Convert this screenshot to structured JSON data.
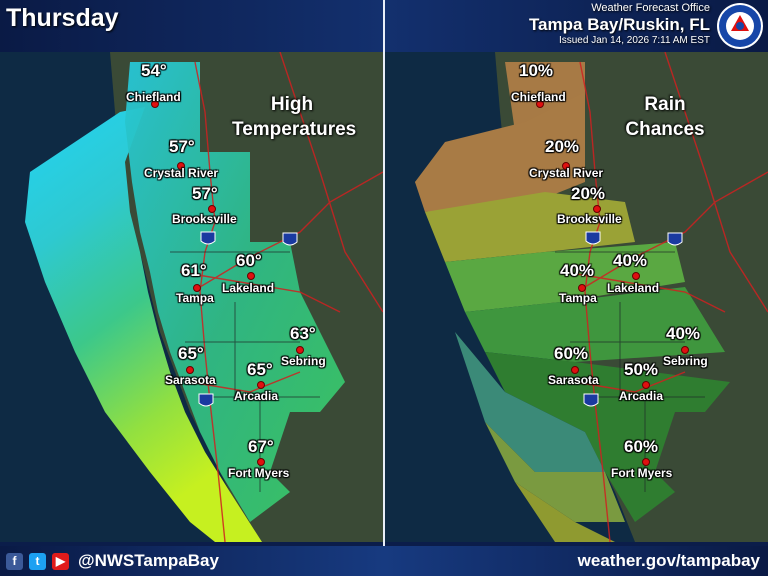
{
  "header": {
    "day": "Thursday",
    "office_line1": "Weather Forecast Office",
    "office_line2": "Tampa Bay/Ruskin, FL",
    "issued": "Issued Jan 14, 2026 7:11 AM EST",
    "logo_text": "NATIONAL WEATHER SERVICE"
  },
  "left_panel": {
    "title_line1": "High",
    "title_line2": "Temperatures",
    "cities": [
      {
        "name": "Chiefland",
        "value": "54°"
      },
      {
        "name": "Crystal River",
        "value": "57°"
      },
      {
        "name": "Brooksville",
        "value": "57°"
      },
      {
        "name": "Tampa",
        "value": "61°"
      },
      {
        "name": "Lakeland",
        "value": "60°"
      },
      {
        "name": "Sebring",
        "value": "63°"
      },
      {
        "name": "Sarasota",
        "value": "65°"
      },
      {
        "name": "Arcadia",
        "value": "65°"
      },
      {
        "name": "Fort Myers",
        "value": "67°"
      }
    ]
  },
  "right_panel": {
    "title_line1": "Rain",
    "title_line2": "Chances",
    "cities": [
      {
        "name": "Chiefland",
        "value": "10%"
      },
      {
        "name": "Crystal River",
        "value": "20%"
      },
      {
        "name": "Brooksville",
        "value": "20%"
      },
      {
        "name": "Tampa",
        "value": "40%"
      },
      {
        "name": "Lakeland",
        "value": "40%"
      },
      {
        "name": "Sebring",
        "value": "40%"
      },
      {
        "name": "Sarasota",
        "value": "60%"
      },
      {
        "name": "Arcadia",
        "value": "50%"
      },
      {
        "name": "Fort Myers",
        "value": "60%"
      }
    ]
  },
  "interstates": [
    "75",
    "4",
    "75"
  ],
  "footer": {
    "social_icons": [
      "facebook-icon",
      "twitter-icon",
      "youtube-icon"
    ],
    "handle": "@NWSTampaBay",
    "url": "weather.gov/tampabay"
  },
  "colors": {
    "header_bg": "#0b1d4a",
    "temp_cold": "#22d0f0",
    "temp_warm": "#c8f020",
    "rain_low": "#b07a40",
    "rain_high": "#2f7a30",
    "city_dot": "#e01010"
  }
}
